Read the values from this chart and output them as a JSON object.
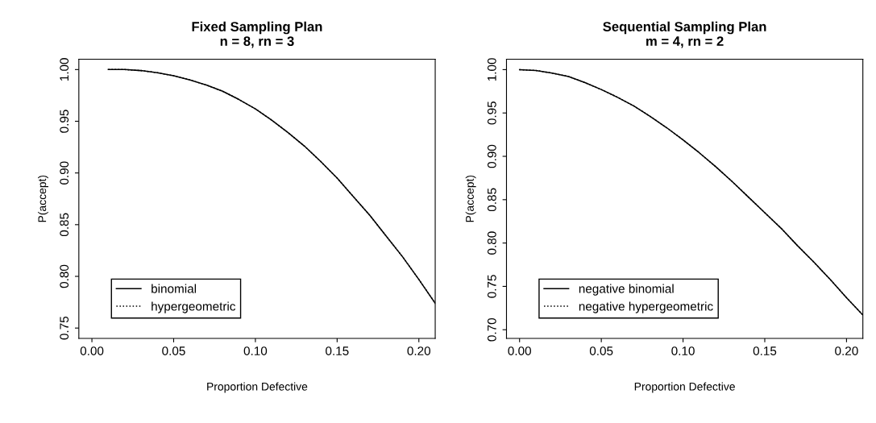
{
  "chart_data": [
    {
      "type": "line",
      "title": "Fixed Sampling Plan\nn = 8, rn = 3",
      "xlabel": "Proportion Defective",
      "ylabel": "P(accept)",
      "x": [
        0.01,
        0.02,
        0.03,
        0.04,
        0.05,
        0.06,
        0.07,
        0.08,
        0.09,
        0.1,
        0.11,
        0.12,
        0.13,
        0.14,
        0.15,
        0.16,
        0.17,
        0.18,
        0.19,
        0.2,
        0.21
      ],
      "series": [
        {
          "name": "binomial",
          "color": "#000000",
          "line_style": "solid",
          "values": [
            1.0,
            1.0,
            0.999,
            0.997,
            0.994,
            0.99,
            0.985,
            0.979,
            0.971,
            0.962,
            0.951,
            0.939,
            0.926,
            0.911,
            0.895,
            0.877,
            0.859,
            0.839,
            0.819,
            0.797,
            0.774
          ]
        },
        {
          "name": "hypergeometric",
          "color": "#000000",
          "line_style": "dotted",
          "values": [
            1.0,
            1.0,
            0.999,
            0.997,
            0.994,
            0.99,
            0.985,
            0.979,
            0.971,
            0.962,
            0.951,
            0.939,
            0.926,
            0.911,
            0.895,
            0.877,
            0.859,
            0.839,
            0.819,
            0.797,
            0.774
          ]
        }
      ],
      "xlim": [
        -0.008,
        0.21
      ],
      "xticks": [
        {
          "value": 0,
          "label": "0.00"
        },
        {
          "value": 0.05,
          "label": "0.05"
        },
        {
          "value": 0.1,
          "label": "0.10"
        },
        {
          "value": 0.15,
          "label": "0.15"
        },
        {
          "value": 0.2,
          "label": "0.20"
        }
      ],
      "ylim": [
        0.74,
        1.01
      ],
      "yticks": [
        {
          "value": 0.75,
          "label": "0.75"
        },
        {
          "value": 0.8,
          "label": "0.80"
        },
        {
          "value": 0.85,
          "label": "0.85"
        },
        {
          "value": 0.9,
          "label": "0.90"
        },
        {
          "value": 0.95,
          "label": "0.95"
        },
        {
          "value": 1.0,
          "label": "1.00"
        }
      ],
      "legend": "bottom left",
      "grid": false
    },
    {
      "type": "line",
      "title": "Sequential Sampling Plan\nm = 4, rn = 2",
      "xlabel": "Proportion Defective",
      "ylabel": "P(accept)",
      "x": [
        0.0,
        0.01,
        0.02,
        0.03,
        0.04,
        0.05,
        0.06,
        0.07,
        0.08,
        0.09,
        0.1,
        0.11,
        0.12,
        0.13,
        0.14,
        0.15,
        0.16,
        0.17,
        0.18,
        0.19,
        0.2,
        0.21
      ],
      "series": [
        {
          "name": "negative binomial",
          "color": "#000000",
          "line_style": "solid",
          "values": [
            1.0,
            0.999,
            0.996,
            0.992,
            0.985,
            0.977,
            0.968,
            0.958,
            0.946,
            0.933,
            0.919,
            0.904,
            0.888,
            0.871,
            0.853,
            0.835,
            0.817,
            0.797,
            0.778,
            0.758,
            0.737,
            0.717
          ]
        },
        {
          "name": "negative hypergeometric",
          "color": "#000000",
          "line_style": "dotted",
          "values": [
            1.0,
            0.999,
            0.996,
            0.992,
            0.985,
            0.977,
            0.968,
            0.958,
            0.946,
            0.933,
            0.919,
            0.904,
            0.888,
            0.871,
            0.853,
            0.835,
            0.817,
            0.797,
            0.778,
            0.758,
            0.737,
            0.717
          ]
        }
      ],
      "xlim": [
        -0.008,
        0.21
      ],
      "xticks": [
        {
          "value": 0,
          "label": "0.00"
        },
        {
          "value": 0.05,
          "label": "0.05"
        },
        {
          "value": 0.1,
          "label": "0.10"
        },
        {
          "value": 0.15,
          "label": "0.15"
        },
        {
          "value": 0.2,
          "label": "0.20"
        }
      ],
      "ylim": [
        0.69,
        1.012
      ],
      "yticks": [
        {
          "value": 0.7,
          "label": "0.70"
        },
        {
          "value": 0.75,
          "label": "0.75"
        },
        {
          "value": 0.8,
          "label": "0.80"
        },
        {
          "value": 0.85,
          "label": "0.85"
        },
        {
          "value": 0.9,
          "label": "0.90"
        },
        {
          "value": 0.95,
          "label": "0.95"
        },
        {
          "value": 1.0,
          "label": "1.00"
        }
      ],
      "legend": "bottom left",
      "grid": false
    }
  ]
}
